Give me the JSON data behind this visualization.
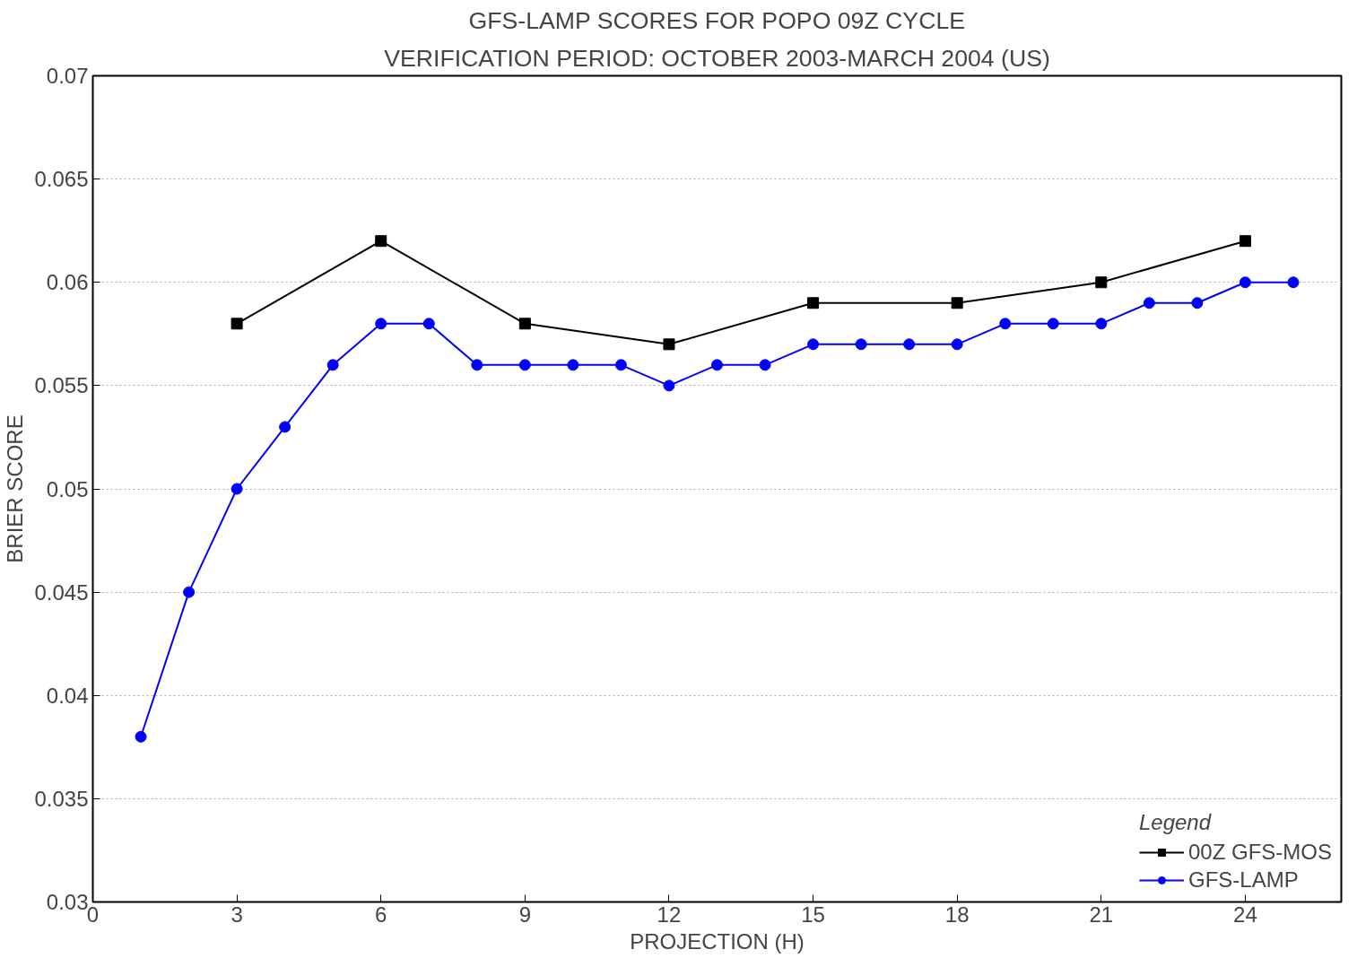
{
  "chart_data": {
    "type": "line",
    "title": "GFS-LAMP SCORES FOR POPO 09Z CYCLE",
    "subtitle": "VERIFICATION PERIOD: OCTOBER 2003-MARCH 2004 (US)",
    "xlabel": "PROJECTION (H)",
    "ylabel": "BRIER SCORE",
    "legend_title": "Legend",
    "series": [
      {
        "name": "00Z GFS-MOS",
        "color": "#000000",
        "marker": "square",
        "x": [
          3,
          6,
          9,
          12,
          15,
          18,
          21,
          24
        ],
        "values": [
          0.058,
          0.062,
          0.058,
          0.057,
          0.059,
          0.059,
          0.06,
          0.062
        ]
      },
      {
        "name": "GFS-LAMP",
        "color": "#0000ff",
        "marker": "circle",
        "x": [
          1,
          2,
          3,
          4,
          5,
          6,
          7,
          8,
          9,
          10,
          11,
          12,
          13,
          14,
          15,
          16,
          17,
          18,
          19,
          20,
          21,
          22,
          23,
          24,
          25
        ],
        "values": [
          0.038,
          0.045,
          0.05,
          0.053,
          0.056,
          0.058,
          0.058,
          0.056,
          0.056,
          0.056,
          0.056,
          0.055,
          0.056,
          0.056,
          0.057,
          0.057,
          0.057,
          0.057,
          0.058,
          0.058,
          0.058,
          0.059,
          0.059,
          0.06,
          0.06
        ]
      }
    ],
    "xlim": [
      0,
      26
    ],
    "xticks": [
      0,
      3,
      6,
      9,
      12,
      15,
      18,
      21,
      24
    ],
    "ylim": [
      0.03,
      0.07
    ],
    "yticks": [
      0.03,
      0.035,
      0.04,
      0.045,
      0.05,
      0.055,
      0.06,
      0.065,
      0.07
    ],
    "grid": "y",
    "legend": "bottom right",
    "line_style": "solid"
  }
}
